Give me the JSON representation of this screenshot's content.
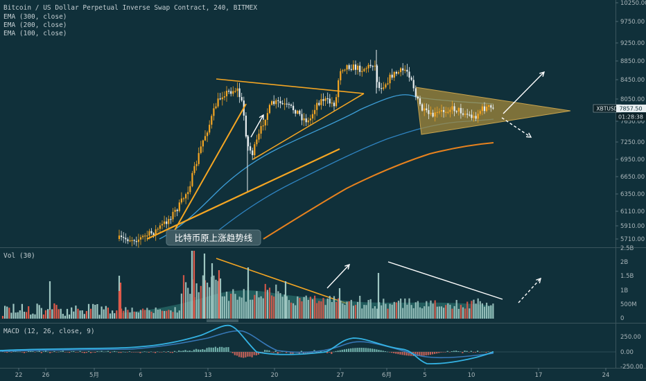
{
  "chart_data": {
    "type": "candlestick",
    "title": "Bitcoin / US Dollar Perpetual Inverse Swap Contract, 240, BITMEX",
    "indicators": [
      "EMA (300, close)",
      "EMA (200, close)",
      "EMA (100, close)"
    ],
    "symbol": "XBTUSD",
    "last_price": "7857.50",
    "countdown": "01:28:38",
    "price_ticks": [
      "10250.00",
      "9750.00",
      "9250.00",
      "8850.00",
      "8450.00",
      "8050.00",
      "7650.00",
      "7250.00",
      "6950.00",
      "6650.00",
      "6350.00",
      "6110.00",
      "5910.00",
      "5710.00"
    ],
    "annotation": "比特币原上涨趋势线",
    "volume": {
      "label": "Vol (30)",
      "ticks": [
        "2.5B",
        "2B",
        "1.5B",
        "1B",
        "500M",
        "0"
      ]
    },
    "macd": {
      "label": "MACD (12, 26, close, 9)",
      "ticks": [
        "250.00",
        "0.00",
        "-250.00"
      ]
    },
    "x_ticks": [
      "22",
      "26",
      "5月",
      "6",
      "13",
      "20",
      "27",
      "6月",
      "5",
      "10",
      "17",
      "24"
    ],
    "colors": {
      "background": "#10303a",
      "up": "#f5a623",
      "down": "#e8eef0",
      "ema_fast": "#3d9ed8",
      "ema_mid": "#2f83c0",
      "ema_slow": "#e8821e",
      "trend": "#f5a623",
      "triangle_fill": "#a88a3a",
      "vol_up": "#9fc7c2",
      "vol_down": "#e05a4a"
    }
  }
}
